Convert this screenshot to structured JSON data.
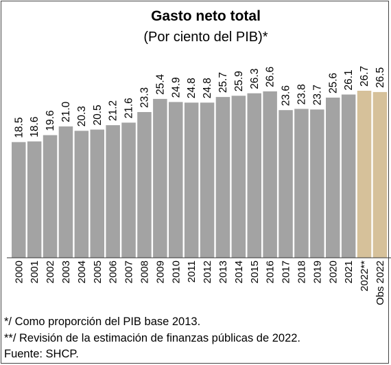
{
  "chart_data": {
    "type": "bar",
    "title": "Gasto neto total",
    "subtitle": "(Por ciento del PIB)*",
    "categories": [
      "2000",
      "2001",
      "2002",
      "2003",
      "2004",
      "2005",
      "2006",
      "2007",
      "2008",
      "2009",
      "2010",
      "2011",
      "2012",
      "2013",
      "2014",
      "2015",
      "2016",
      "2017",
      "2018",
      "2019",
      "2020",
      "2021",
      "2022**",
      "Obs 2022"
    ],
    "values": [
      18.5,
      18.6,
      19.6,
      21.0,
      20.3,
      20.5,
      21.2,
      21.6,
      23.3,
      25.4,
      24.9,
      24.8,
      24.8,
      25.7,
      25.9,
      26.3,
      26.6,
      23.6,
      23.8,
      23.7,
      25.6,
      26.1,
      26.7,
      26.5
    ],
    "value_labels": [
      "18.5",
      "18.6",
      "19.6",
      "21.0",
      "20.3",
      "20.5",
      "21.2",
      "21.6",
      "23.3",
      "25.4",
      "24.9",
      "24.8",
      "24.8",
      "25.7",
      "25.9",
      "26.3",
      "26.6",
      "23.6",
      "23.8",
      "23.7",
      "25.6",
      "26.1",
      "26.7",
      "26.5"
    ],
    "colors": {
      "default": "#a3a3a3",
      "highlight": "#d6c19a",
      "highlight_categories": [
        "2022**",
        "Obs 2022"
      ]
    },
    "xlabel": "",
    "ylabel": "",
    "legend": "none",
    "grid": false
  },
  "footnotes": [
    "*/ Como proporción del PIB base 2013.",
    "**/ Revisión de la estimación de finanzas públicas de 2022.",
    "Fuente: SHCP."
  ]
}
